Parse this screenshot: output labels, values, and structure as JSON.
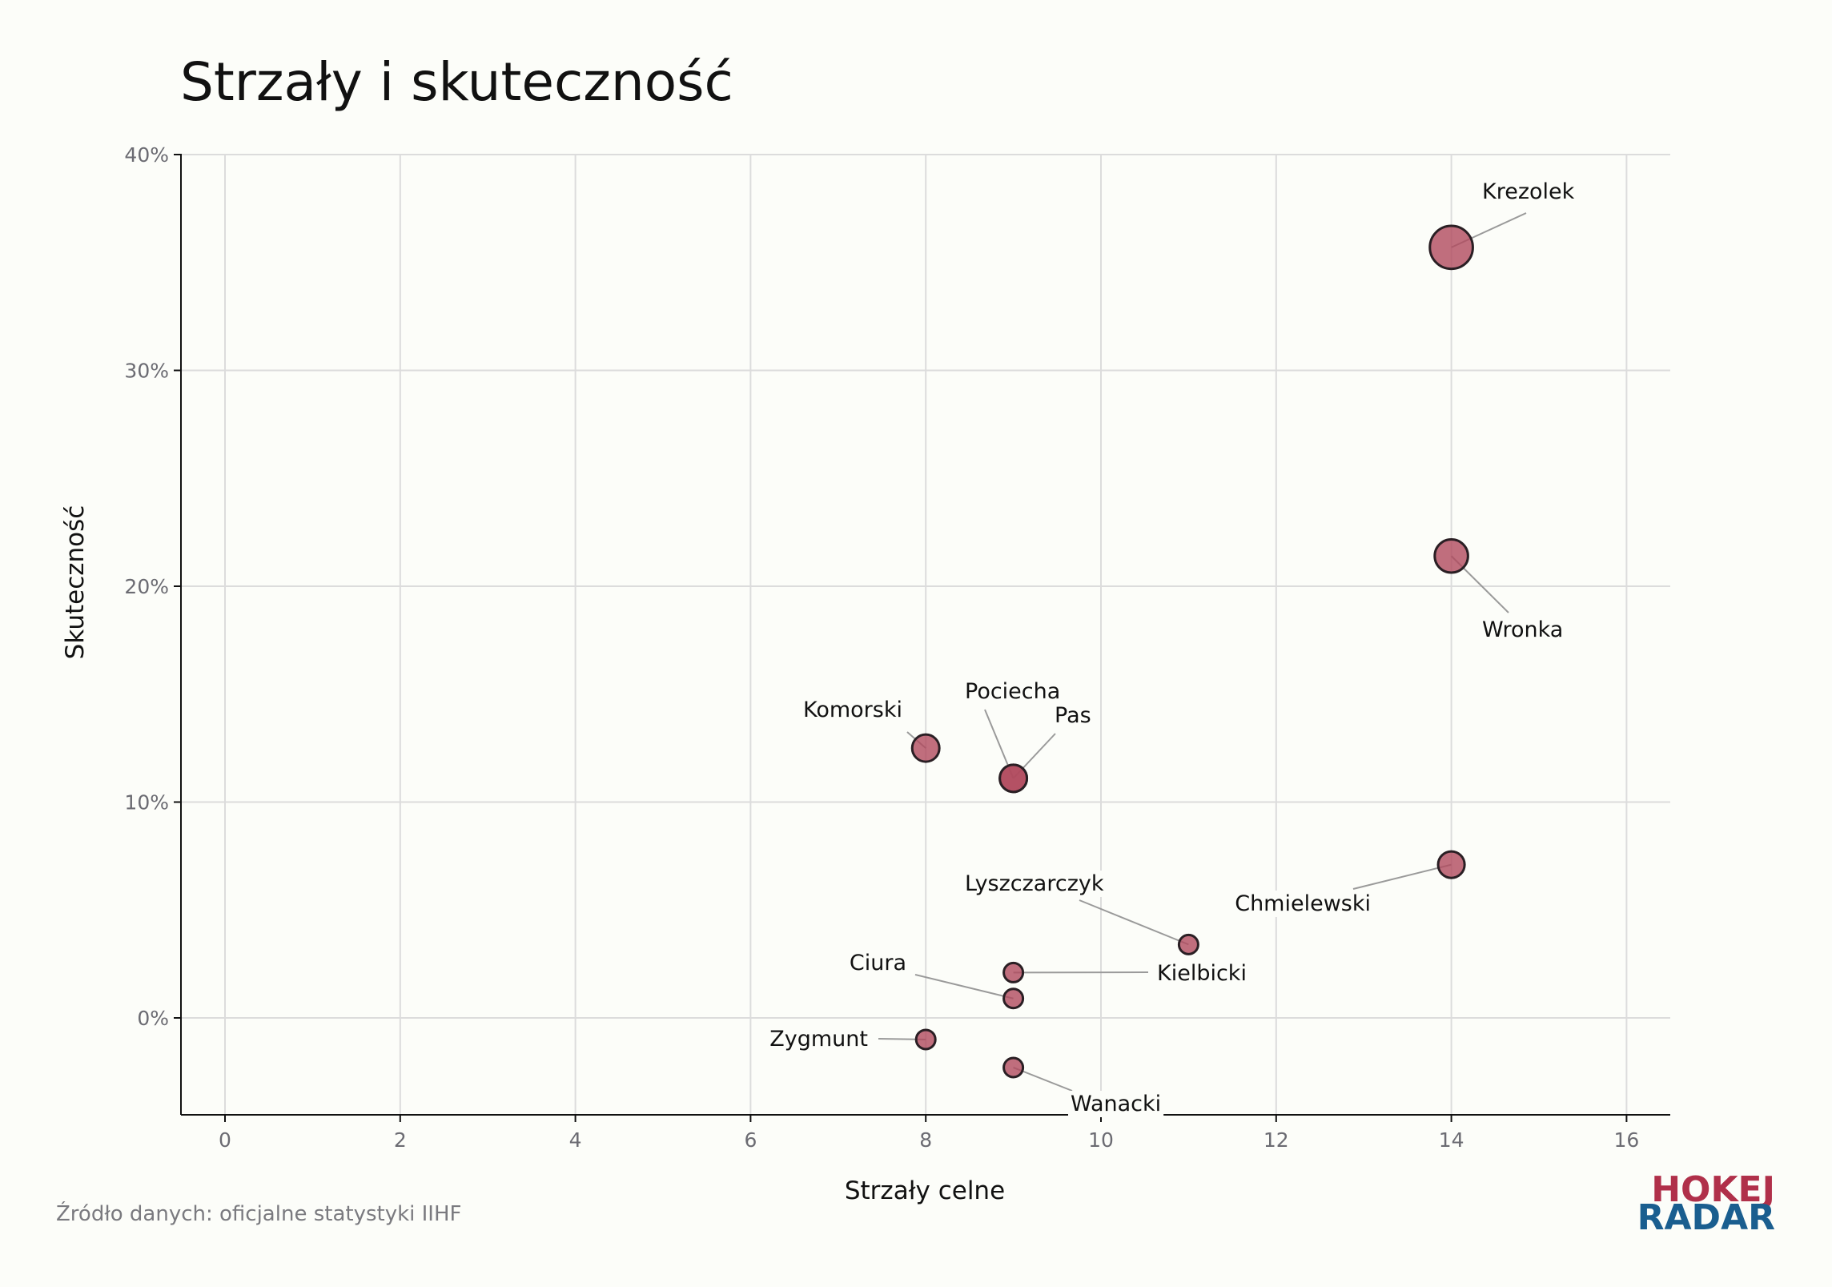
{
  "chart_data": {
    "type": "scatter",
    "title": "Strzały i skuteczność",
    "xlabel": "Strzały celne",
    "ylabel": "Skuteczność",
    "xlim": [
      -0.5,
      16.5
    ],
    "ylim": [
      -4.5,
      40
    ],
    "x_ticks": [
      0,
      2,
      4,
      6,
      8,
      10,
      12,
      14,
      16
    ],
    "y_ticks": [
      0,
      10,
      20,
      30,
      40
    ],
    "y_tick_suffix": "%",
    "grid": true,
    "bubble_color": "#b04a5e",
    "points": [
      {
        "label": "Krezolek",
        "x": 14,
        "y": 35.7,
        "size": 5
      },
      {
        "label": "Wronka",
        "x": 14,
        "y": 21.4,
        "size": 3
      },
      {
        "label": "Chmielewski",
        "x": 14,
        "y": 7.1,
        "size": 1.9
      },
      {
        "label": "Komorski",
        "x": 8,
        "y": 12.5,
        "size": 2
      },
      {
        "label": "Pociecha",
        "x": 9,
        "y": 11.1,
        "size": 2
      },
      {
        "label": "Pas",
        "x": 9,
        "y": 11.1,
        "size": 2
      },
      {
        "label": "Lyszczarczyk",
        "x": 11,
        "y": 3.4,
        "size": 1
      },
      {
        "label": "Kielbicki",
        "x": 9,
        "y": 2.1,
        "size": 1
      },
      {
        "label": "Ciura",
        "x": 9,
        "y": 0.9,
        "size": 1
      },
      {
        "label": "Zygmunt",
        "x": 8,
        "y": -1,
        "size": 1
      },
      {
        "label": "Wanacki",
        "x": 9,
        "y": -2.3,
        "size": 1
      }
    ]
  },
  "source_note": "Źródło danych: oficjalne statystyki IIHF",
  "logo": {
    "line1": "HOKEJ",
    "line2": "RADAR",
    "color1": "#b0304a",
    "color2": "#1a5e8f"
  }
}
